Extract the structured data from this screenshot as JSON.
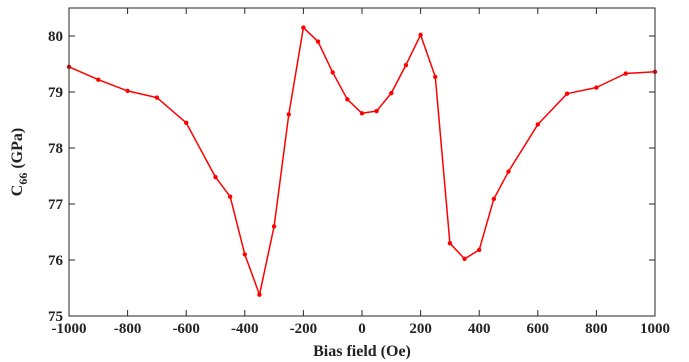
{
  "chart_data": {
    "type": "line",
    "xlabel": "Bias field (Oe)",
    "ylabel": {
      "main": "C",
      "sub": "66",
      "unit": " (GPa)"
    },
    "xlim": [
      -1000,
      1000
    ],
    "ylim": [
      75,
      80.5
    ],
    "xticks": [
      -1000,
      -800,
      -600,
      -400,
      -200,
      0,
      200,
      400,
      600,
      800,
      1000
    ],
    "yticks": [
      75,
      76,
      77,
      78,
      79,
      80
    ],
    "grid": false,
    "series": [
      {
        "color": "#ff0000",
        "marker": "circle",
        "x": [
          -1000,
          -900,
          -800,
          -700,
          -600,
          -500,
          -450,
          -400,
          -350,
          -300,
          -250,
          -200,
          -150,
          -100,
          -50,
          0,
          50,
          100,
          150,
          200,
          250,
          300,
          350,
          400,
          450,
          500,
          600,
          700,
          800,
          900,
          1000
        ],
        "y": [
          79.45,
          79.22,
          79.02,
          78.9,
          78.45,
          77.48,
          77.13,
          76.1,
          75.38,
          76.6,
          78.6,
          80.15,
          79.9,
          79.35,
          78.87,
          78.62,
          78.66,
          78.98,
          79.48,
          80.02,
          79.27,
          76.3,
          76.02,
          76.18,
          77.09,
          77.58,
          78.42,
          78.97,
          79.08,
          79.33,
          79.36
        ]
      }
    ]
  }
}
